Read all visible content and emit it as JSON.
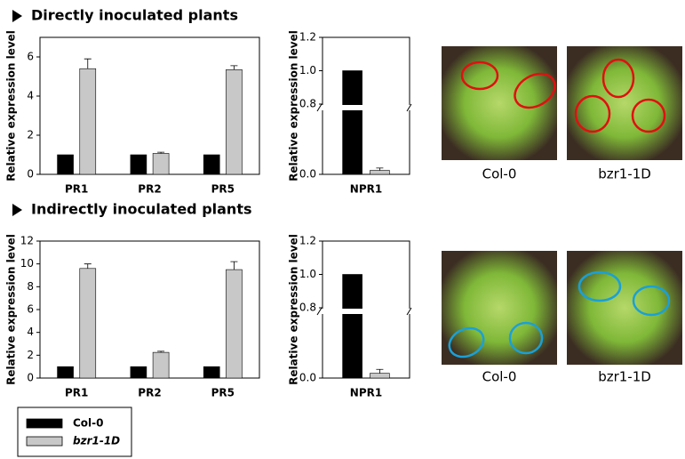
{
  "sections": [
    "Directly inoculated plants",
    "Indirectly inoculated plants"
  ],
  "photo_labels": [
    [
      "Col-0",
      "bzr1-1D"
    ],
    [
      "Col-0",
      "bzr1-1D"
    ]
  ],
  "legend": [
    {
      "name": "Col-0",
      "color": "#000000"
    },
    {
      "name": "bzr1-1D",
      "color": "#c8c8c8"
    }
  ],
  "chart_data": [
    {
      "type": "bar",
      "ylabel": "Relative expression level",
      "categories": [
        "PR1",
        "PR2",
        "PR5"
      ],
      "series": [
        {
          "values": [
            1,
            1,
            1
          ]
        },
        {
          "values": [
            5.4,
            1.07,
            5.35
          ],
          "errors": [
            0.5,
            0.06,
            0.2
          ]
        }
      ],
      "ylim": [
        0,
        7
      ],
      "yticks": [
        0,
        2,
        4,
        6
      ]
    },
    {
      "type": "broken-bar",
      "ylabel": "Relative expression level",
      "categories": [
        "NPR1"
      ],
      "series": [
        {
          "values": [
            1.0
          ]
        },
        {
          "values": [
            0.05
          ],
          "errors": [
            0.03
          ]
        }
      ],
      "ylim": [
        0,
        1.2
      ],
      "ybreak": 0.8,
      "yticks": [
        {
          "value": 0,
          "label": "0.0"
        },
        {
          "value": 0.8,
          "label": "0.8"
        },
        {
          "value": 1.0,
          "label": "1.0"
        },
        {
          "value": 1.2,
          "label": "1.2"
        }
      ]
    },
    {
      "type": "bar",
      "ylabel": "Relative expression level",
      "categories": [
        "PR1",
        "PR2",
        "PR5"
      ],
      "series": [
        {
          "values": [
            1,
            1,
            1
          ]
        },
        {
          "values": [
            9.6,
            2.25,
            9.5
          ],
          "errors": [
            0.4,
            0.1,
            0.7
          ]
        }
      ],
      "ylim": [
        0,
        12
      ],
      "yticks": [
        0,
        2,
        4,
        6,
        8,
        10,
        12
      ]
    },
    {
      "type": "broken-bar",
      "ylabel": "Relative expression level",
      "categories": [
        "NPR1"
      ],
      "series": [
        {
          "values": [
            1.0
          ]
        },
        {
          "values": [
            0.06
          ],
          "errors": [
            0.05
          ]
        }
      ],
      "ylim": [
        0,
        1.2
      ],
      "ybreak": 0.8,
      "yticks": [
        {
          "value": 0,
          "label": "0.0"
        },
        {
          "value": 0.8,
          "label": "0.8"
        },
        {
          "value": 1.0,
          "label": "1.0"
        },
        {
          "value": 1.2,
          "label": "1.2"
        }
      ]
    }
  ]
}
